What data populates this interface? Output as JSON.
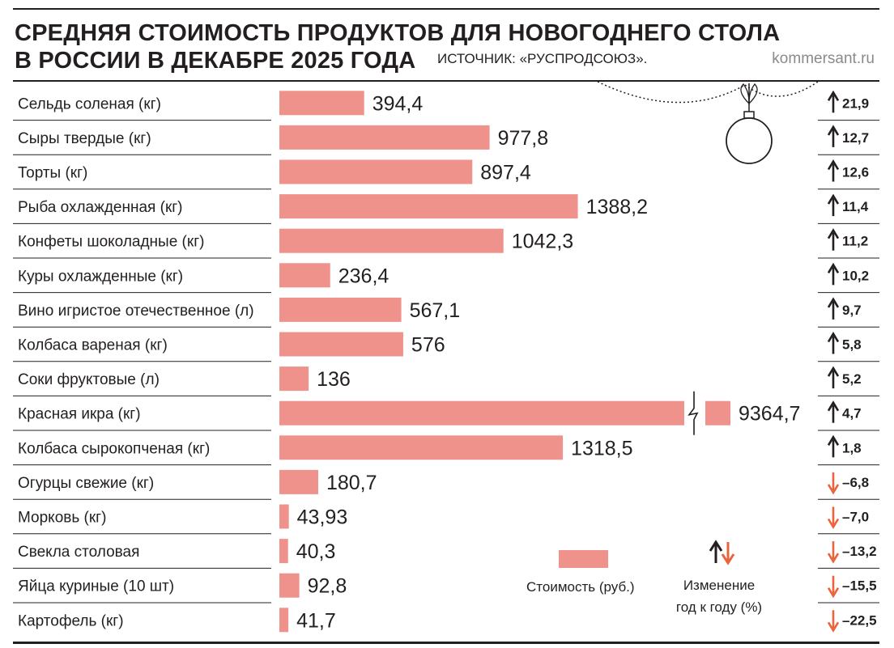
{
  "header": {
    "title_line1": "СРЕДНЯЯ СТОИМОСТЬ ПРОДУКТОВ ДЛЯ НОВОГОДНЕГО СТОЛА",
    "title_line2": "В РОССИИ В ДЕКАБРЕ 2025 ГОДА",
    "source": "ИСТОЧНИК: «РУСПРОДСОЮЗ».",
    "site": "kommersant.ru"
  },
  "legend": {
    "cost_label": "Стоимость (руб.)",
    "change_label_line1": "Изменение",
    "change_label_line2": "год к году (%)"
  },
  "colors": {
    "bar": "#f0928c",
    "up_arrow": "#231f20",
    "down_arrow": "#e8643c",
    "row_divider": "#231f20",
    "text": "#231f20"
  },
  "chart_data": {
    "type": "bar",
    "orientation": "horizontal",
    "title": "Средняя стоимость продуктов для новогоднего стола в России в декабре 2025 года",
    "value_unit": "руб.",
    "change_unit": "%",
    "broken_axis_category": "Красная икра (кг)",
    "xlim": [
      0,
      1500
    ],
    "categories": [
      "Сельдь соленая (кг)",
      "Сыры твердые (кг)",
      "Торты (кг)",
      "Рыба охлажденная (кг)",
      "Конфеты шоколадные (кг)",
      "Куры охлажденные (кг)",
      "Вино игристое отечественное (л)",
      "Колбаса вареная (кг)",
      "Соки фруктовые (л)",
      "Красная икра (кг)",
      "Колбаса сырокопченая (кг)",
      "Огурцы свежие (кг)",
      "Морковь (кг)",
      "Свекла столовая",
      "Яйца куриные (10 шт)",
      "Картофель (кг)"
    ],
    "values": [
      394.4,
      977.8,
      897.4,
      1388.2,
      1042.3,
      236.4,
      567.1,
      576,
      136,
      9364.7,
      1318.5,
      180.7,
      43.93,
      40.3,
      92.8,
      41.7
    ],
    "value_labels": [
      "394,4",
      "977,8",
      "897,4",
      "1388,2",
      "1042,3",
      "236,4",
      "567,1",
      "576",
      "136",
      "9364,7",
      "1318,5",
      "180,7",
      "43,93",
      "40,3",
      "92,8",
      "41,7"
    ],
    "changes": [
      21.9,
      12.7,
      12.6,
      11.4,
      11.2,
      10.2,
      9.7,
      5.8,
      5.2,
      4.7,
      1.8,
      -6.8,
      -7.0,
      -13.2,
      -15.5,
      -22.5
    ],
    "change_labels": [
      "21,9",
      "12,7",
      "12,6",
      "11,4",
      "11,2",
      "10,2",
      "9,7",
      "5,8",
      "5,2",
      "4,7",
      "1,8",
      "–6,8",
      "–7,0",
      "–13,2",
      "–15,5",
      "–22,5"
    ]
  }
}
